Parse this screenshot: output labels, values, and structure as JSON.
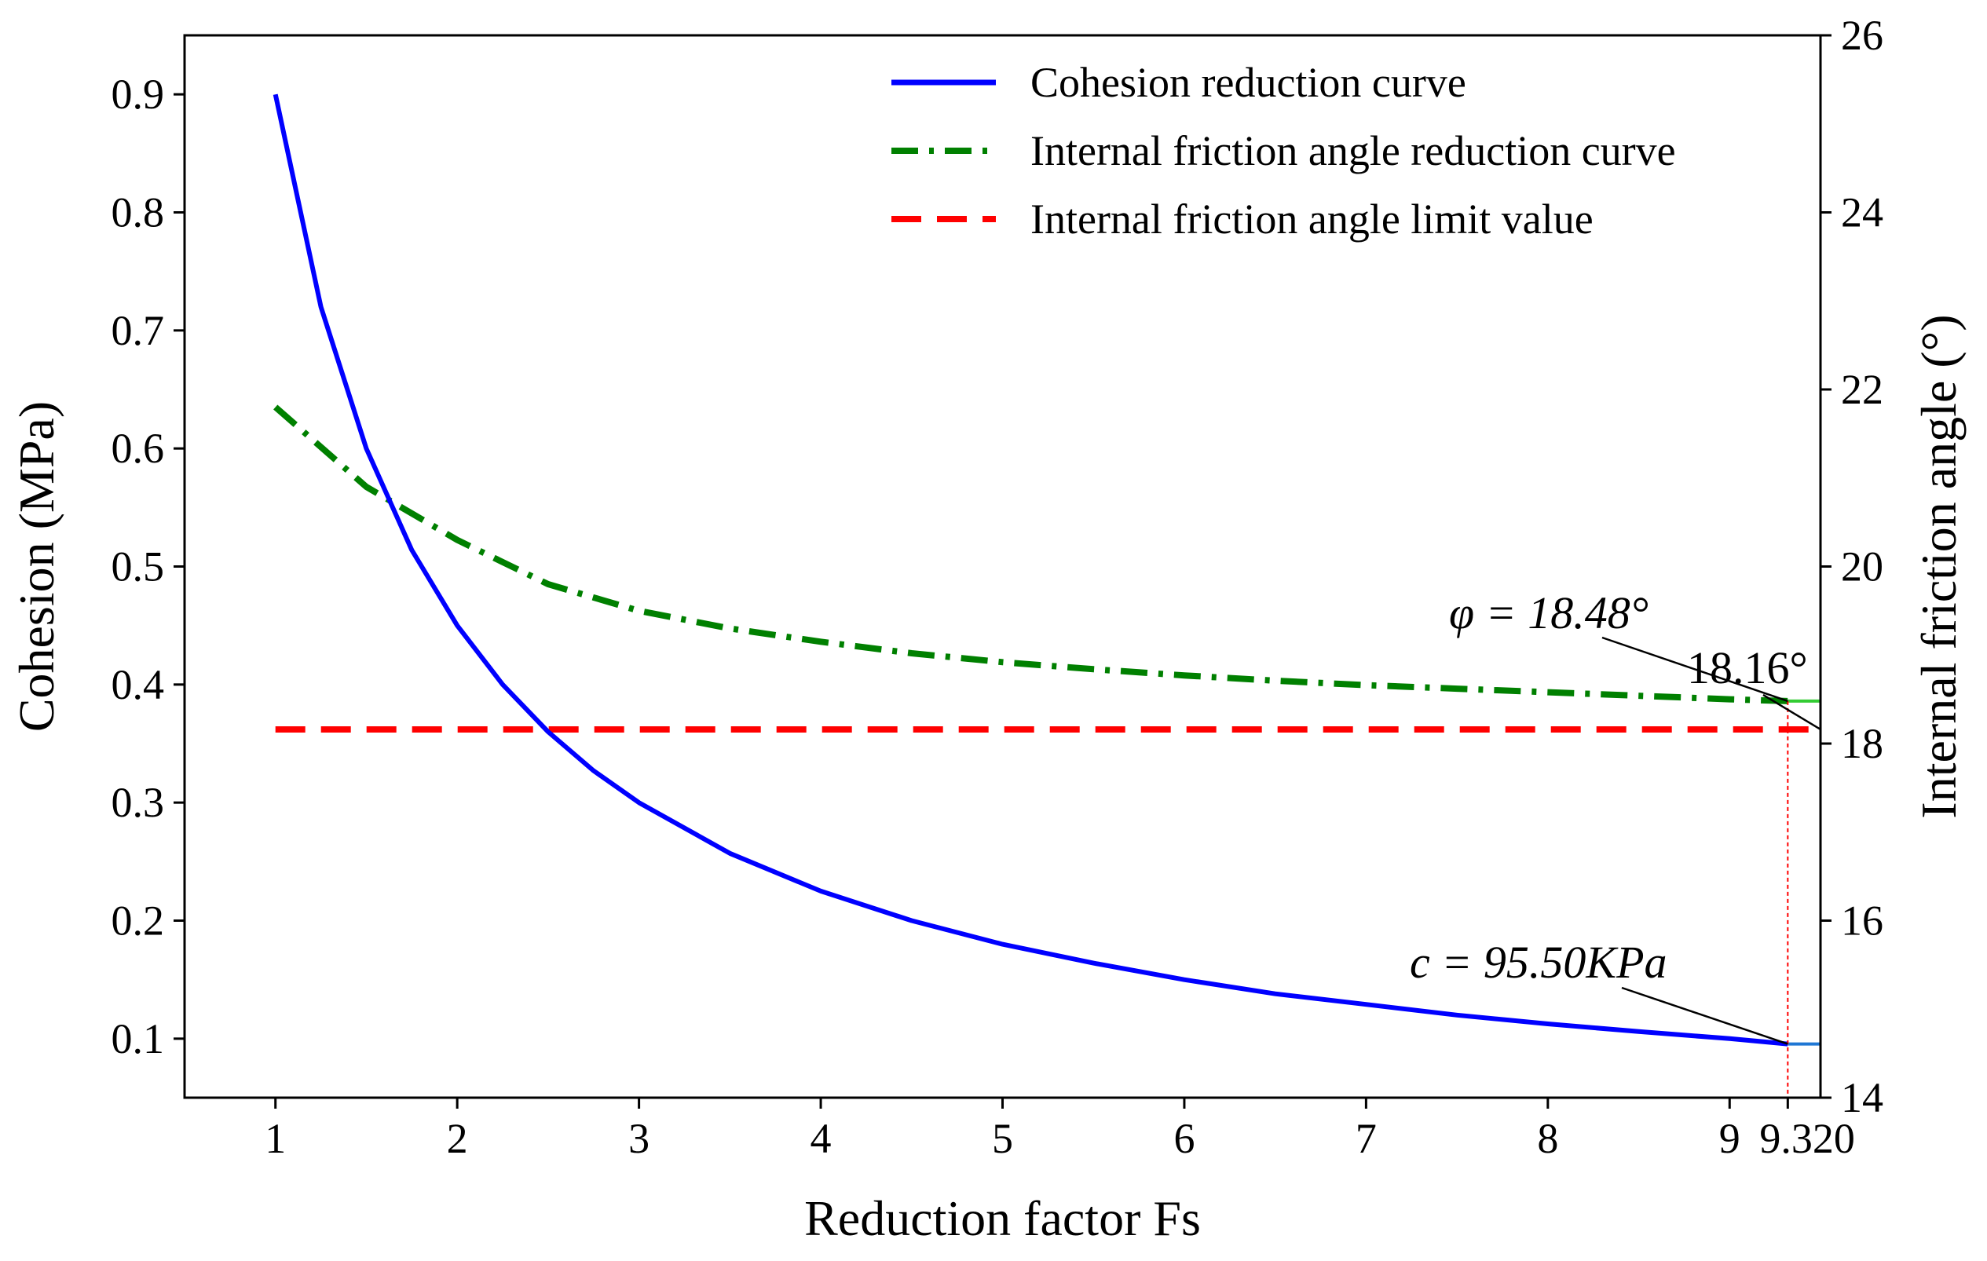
{
  "chart_data": {
    "type": "line",
    "xlabel": "Reduction factor Fs",
    "ylabel_left": "Cohesion (MPa)",
    "ylabel_right": "Internal friction angle (°)",
    "xlim": [
      0.5,
      9.5
    ],
    "ylim_left": [
      0.05,
      0.95
    ],
    "ylim_right": [
      14,
      26
    ],
    "x_ticks": [
      "1",
      "2",
      "3",
      "4",
      "5",
      "6",
      "7",
      "8",
      "9",
      "9.320"
    ],
    "x_tick_values": [
      1,
      2,
      3,
      4,
      5,
      6,
      7,
      8,
      9,
      9.32
    ],
    "y_left_ticks": [
      "0.1",
      "0.2",
      "0.3",
      "0.4",
      "0.5",
      "0.6",
      "0.7",
      "0.8",
      "0.9"
    ],
    "y_left_tick_values": [
      0.1,
      0.2,
      0.3,
      0.4,
      0.5,
      0.6,
      0.7,
      0.8,
      0.9
    ],
    "y_right_ticks": [
      "14",
      "16",
      "18",
      "20",
      "22",
      "24",
      "26"
    ],
    "y_right_tick_values": [
      14,
      16,
      18,
      20,
      22,
      24,
      26
    ],
    "legend_position": "top-right",
    "series": [
      {
        "name": "Cohesion reduction curve",
        "axis": "left",
        "color": "#0000ff",
        "style": "solid",
        "x": [
          1,
          1.25,
          1.5,
          1.75,
          2,
          2.25,
          2.5,
          2.75,
          3,
          3.5,
          4,
          4.5,
          5,
          5.5,
          6,
          6.5,
          7,
          7.5,
          8,
          8.5,
          9,
          9.32
        ],
        "values": [
          0.9,
          0.72,
          0.6,
          0.514,
          0.45,
          0.4,
          0.36,
          0.327,
          0.3,
          0.257,
          0.225,
          0.2,
          0.18,
          0.164,
          0.15,
          0.138,
          0.129,
          0.12,
          0.1125,
          0.106,
          0.1,
          0.0955
        ]
      },
      {
        "name": "Internal friction angle reduction curve",
        "axis": "right",
        "color": "#008000",
        "style": "dashdot",
        "x": [
          1,
          1.5,
          2,
          2.5,
          3,
          3.5,
          4,
          4.5,
          5,
          5.5,
          6,
          6.5,
          7,
          7.5,
          8,
          8.5,
          9,
          9.32
        ],
        "values": [
          21.8,
          20.9,
          20.3,
          19.8,
          19.5,
          19.3,
          19.15,
          19.02,
          18.92,
          18.84,
          18.77,
          18.71,
          18.66,
          18.62,
          18.58,
          18.54,
          18.5,
          18.48
        ]
      },
      {
        "name": "Internal friction angle limit value",
        "axis": "right",
        "color": "#ff0000",
        "style": "dashed",
        "x": [
          1,
          9.5
        ],
        "values": [
          18.16,
          18.16
        ]
      }
    ],
    "extensions": [
      {
        "axis": "right",
        "color": "#33cc33",
        "x": [
          9.32,
          9.5
        ],
        "values": [
          18.48,
          18.48
        ]
      },
      {
        "axis": "left",
        "color": "#1f77d4",
        "x": [
          9.32,
          9.5
        ],
        "values": [
          0.0955,
          0.0955
        ]
      }
    ],
    "guide": {
      "color": "#ff0000",
      "x": 9.32
    },
    "annotations": {
      "phi_label": "φ = 18.48°",
      "phi_value": 18.48,
      "limit_label": "18.16°",
      "limit_value": 18.16,
      "c_label": "c = 95.50KPa",
      "c_value": 0.0955
    }
  }
}
